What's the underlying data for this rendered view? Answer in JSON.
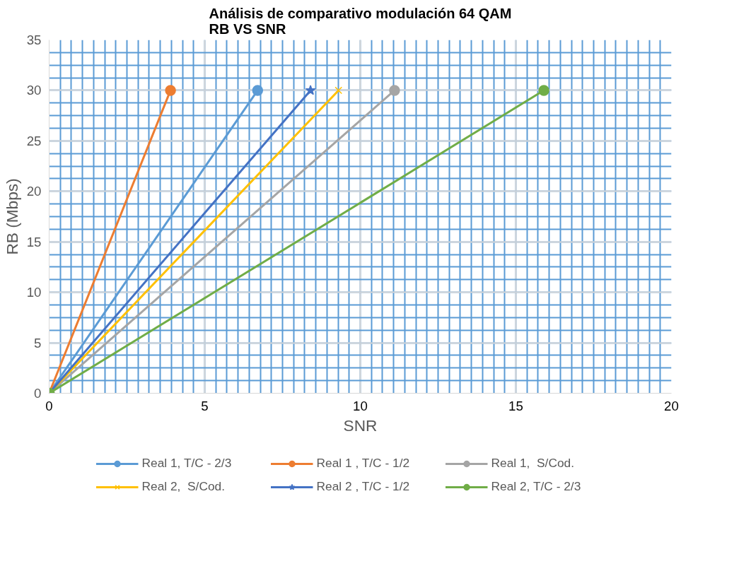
{
  "chart_data": {
    "type": "line",
    "title": "Análisis de comparativo modulación 64 QAM\nRB VS SNR",
    "xlabel": "SNR",
    "ylabel": "RB (Mbps)",
    "xlim": [
      0,
      20
    ],
    "xticks": [
      0,
      5,
      10,
      15,
      20
    ],
    "ylim": [
      0,
      35
    ],
    "yticks": [
      0,
      5,
      10,
      15,
      20,
      25,
      30,
      35
    ],
    "grid": true,
    "legend": "bottom",
    "line_style": "solid",
    "series": [
      {
        "name": "Real 1, T/C - 2/3",
        "color": "#5b9bd5",
        "marker": "circle",
        "x": [
          0,
          6.7
        ],
        "values": [
          0,
          30
        ]
      },
      {
        "name": "Real 1 , T/C - 1/2",
        "color": "#ed7d31",
        "marker": "circle",
        "x": [
          0,
          3.9
        ],
        "values": [
          0,
          30
        ]
      },
      {
        "name": "Real 1,  S/Cod.",
        "color": "#a5a5a5",
        "marker": "circle",
        "x": [
          0,
          11.1
        ],
        "values": [
          0,
          30
        ]
      },
      {
        "name": "Real 2,  S/Cod.",
        "color": "#ffc000",
        "marker": "cross",
        "x": [
          0,
          9.3
        ],
        "values": [
          0,
          30
        ]
      },
      {
        "name": "Real 2 , T/C - 1/2",
        "color": "#4472c4",
        "marker": "star",
        "x": [
          0,
          8.4
        ],
        "values": [
          0,
          30
        ]
      },
      {
        "name": "Real 2, T/C - 2/3",
        "color": "#70ad47",
        "marker": "circle",
        "x": [
          0,
          15.9
        ],
        "values": [
          0,
          30
        ]
      }
    ]
  }
}
